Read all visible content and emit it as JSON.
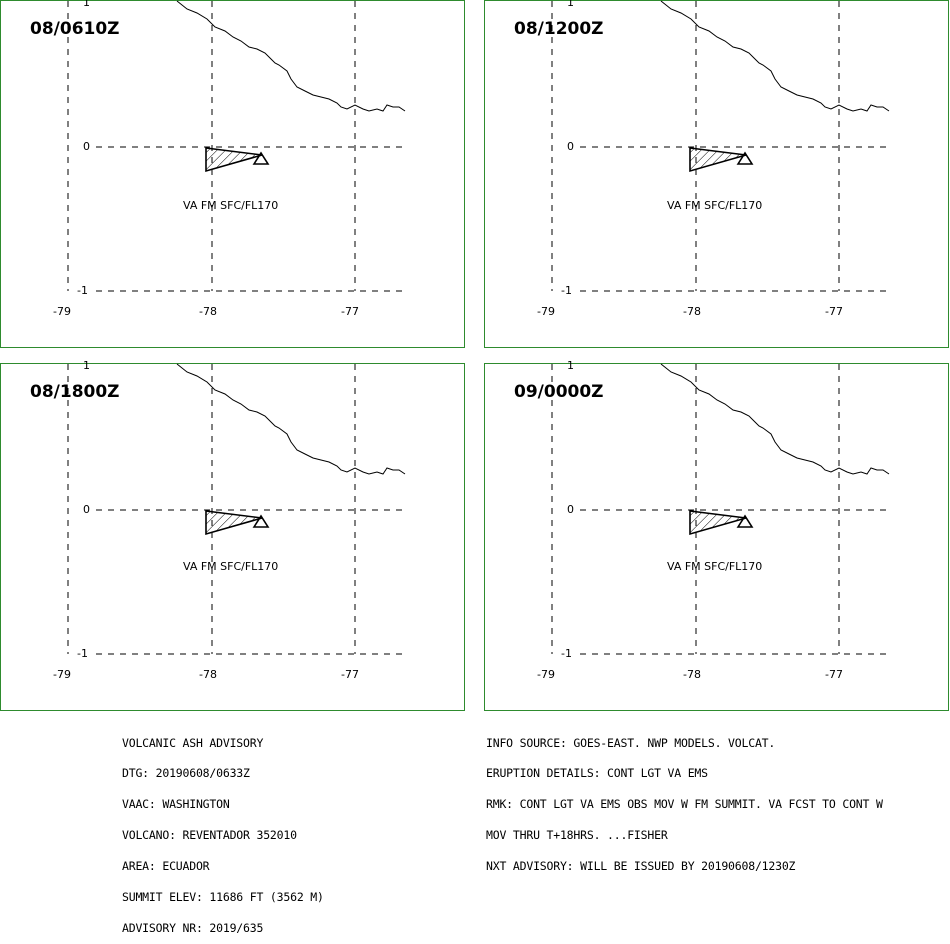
{
  "panels": [
    {
      "title": "08/0610Z",
      "ash_label": "VA FM SFC/FL170"
    },
    {
      "title": "08/1200Z",
      "ash_label": "VA FM SFC/FL170"
    },
    {
      "title": "08/1800Z",
      "ash_label": "VA FM SFC/FL170"
    },
    {
      "title": "09/0000Z",
      "ash_label": "VA FM SFC/FL170"
    }
  ],
  "axes": {
    "lat_ticks": [
      "1",
      "0",
      "-1"
    ],
    "lon_ticks": [
      "-79",
      "-78",
      "-77"
    ]
  },
  "advisory_left": [
    "VOLCANIC ASH ADVISORY",
    "DTG: 20190608/0633Z",
    "VAAC: WASHINGTON",
    "VOLCANO: REVENTADOR 352010",
    "AREA: ECUADOR",
    "SUMMIT ELEV: 11686 FT (3562 M)",
    "ADVISORY NR: 2019/635"
  ],
  "advisory_right": [
    "INFO SOURCE: GOES-EAST. NWP MODELS. VOLCAT.",
    "ERUPTION DETAILS: CONT LGT VA EMS",
    "RMK: CONT LGT VA EMS OBS MOV W FM SUMMIT. VA FCST TO CONT W",
    "MOV THRU T+18HRS. ...FISHER",
    "NXT ADVISORY: WILL BE ISSUED BY 20190608/1230Z"
  ],
  "colors": {
    "panel_border": "#2e8b2e",
    "lines": "#000000"
  }
}
